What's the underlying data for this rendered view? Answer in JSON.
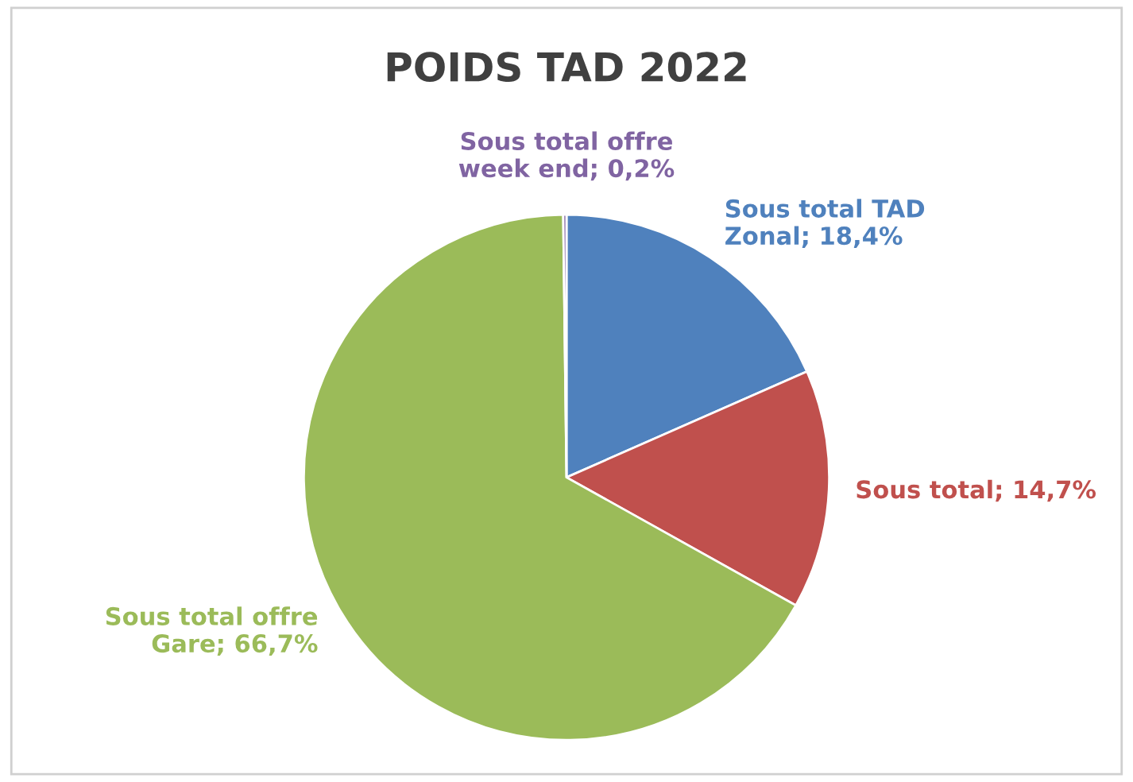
{
  "chart_data": {
    "type": "pie",
    "title": "POIDS TAD 2022",
    "categories": [
      "Sous total TAD\nZonal",
      "Sous total",
      "Sous total offre\nGare",
      "Sous total offre\nweek end"
    ],
    "values": [
      18.4,
      14.7,
      66.7,
      0.2
    ],
    "value_labels": [
      "18,4%",
      "14,7%",
      "66,7%",
      "0,2%"
    ],
    "colors": [
      "#4f81bd",
      "#c0504d",
      "#9bbb59",
      "#8064a2"
    ]
  }
}
